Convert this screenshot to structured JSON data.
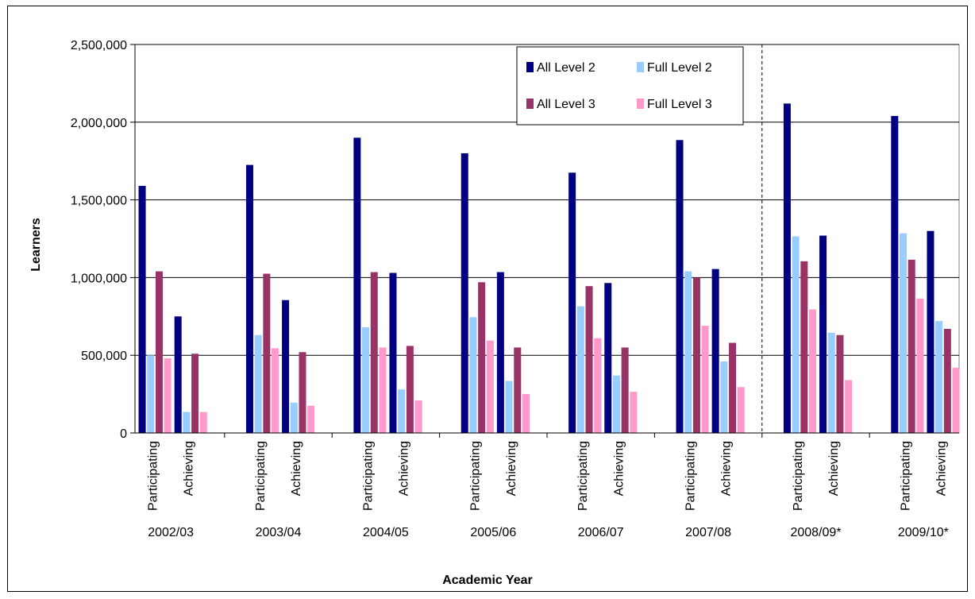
{
  "chart_data": {
    "type": "bar",
    "title": "",
    "xlabel": "Academic Year",
    "ylabel": "Learners",
    "ylim": [
      0,
      2500000
    ],
    "yticks": [
      "0",
      "500,000",
      "1,000,000",
      "1,500,000",
      "2,000,000",
      "2,500,000"
    ],
    "grid": true,
    "legend_position": "top-right",
    "groups": [
      {
        "year": "2002/03",
        "categories": [
          "Participating",
          "Achieving"
        ]
      },
      {
        "year": "2003/04",
        "categories": [
          "Participating",
          "Achieving"
        ]
      },
      {
        "year": "2004/05",
        "categories": [
          "Participating",
          "Achieving"
        ]
      },
      {
        "year": "2005/06",
        "categories": [
          "Participating",
          "Achieving"
        ]
      },
      {
        "year": "2006/07",
        "categories": [
          "Participating",
          "Achieving"
        ]
      },
      {
        "year": "2007/08",
        "categories": [
          "Participating",
          "Achieving"
        ]
      },
      {
        "year": "2008/09*",
        "categories": [
          "Participating",
          "Achieving"
        ]
      },
      {
        "year": "2009/10*",
        "categories": [
          "Participating",
          "Achieving"
        ]
      }
    ],
    "series": [
      {
        "name": "All Level 2",
        "color": "#000080",
        "values": [
          1590000,
          750000,
          1725000,
          855000,
          1900000,
          1030000,
          1800000,
          1035000,
          1675000,
          965000,
          1885000,
          1055000,
          2120000,
          1270000,
          2040000,
          1300000
        ]
      },
      {
        "name": "Full Level 2",
        "color": "#99CCFF",
        "values": [
          500000,
          135000,
          630000,
          195000,
          680000,
          280000,
          745000,
          335000,
          815000,
          370000,
          1040000,
          460000,
          1265000,
          645000,
          1285000,
          720000
        ]
      },
      {
        "name": "All Level 3",
        "color": "#993366",
        "values": [
          1040000,
          510000,
          1025000,
          520000,
          1035000,
          560000,
          970000,
          550000,
          945000,
          550000,
          1000000,
          580000,
          1105000,
          630000,
          1115000,
          670000
        ]
      },
      {
        "name": "Full Level 3",
        "color": "#FF99CC",
        "values": [
          480000,
          135000,
          545000,
          175000,
          550000,
          210000,
          595000,
          250000,
          610000,
          265000,
          690000,
          295000,
          795000,
          340000,
          865000,
          420000
        ]
      }
    ],
    "legend_rows": [
      [
        "All Level 2",
        "Full Level 2"
      ],
      [
        "All Level 3",
        "Full Level 3"
      ]
    ],
    "divider_after_group": "2007/08"
  }
}
